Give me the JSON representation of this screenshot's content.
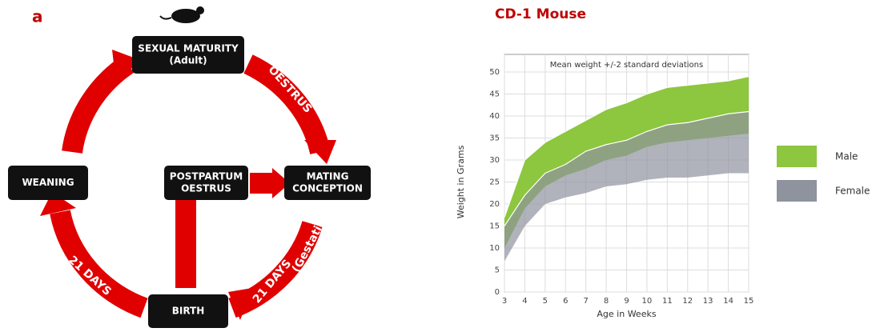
{
  "diagram": {
    "label": "a",
    "nodes": [
      {
        "lines": [
          "SEXUAL MATURITY",
          "(Adult)"
        ]
      },
      {
        "lines": [
          "WEANING"
        ]
      },
      {
        "lines": [
          "POSTPARTUM",
          "OESTRUS"
        ]
      },
      {
        "lines": [
          "MATING",
          "CONCEPTION"
        ]
      },
      {
        "lines": [
          "BIRTH"
        ]
      }
    ],
    "edge_labels": [
      "OESTRUS",
      "21 DAYS",
      "21 DAYS",
      "(Gestation)"
    ]
  },
  "chart_data": {
    "type": "band",
    "title": "CD-1 Mouse",
    "subtitle": "Mean weight +/-2 standard deviations",
    "xlabel": "Age in Weeks",
    "ylabel": "Weight in Grams",
    "x": [
      3,
      4,
      5,
      6,
      7,
      8,
      9,
      10,
      11,
      12,
      13,
      14,
      15
    ],
    "series": [
      {
        "name": "Male",
        "color": "#8dc63f",
        "upper": [
          17,
          30,
          34,
          36.5,
          39,
          41.5,
          43,
          45,
          46.5,
          47,
          47.5,
          48,
          49
        ],
        "lower": [
          10,
          19,
          24,
          26.5,
          28,
          30,
          31,
          33,
          34,
          34.5,
          35,
          35.5,
          36
        ]
      },
      {
        "name": "Female",
        "color": "#8e939e",
        "upper": [
          15,
          22,
          27,
          29,
          32,
          33.5,
          34.5,
          36.5,
          38,
          38.5,
          39.5,
          40.5,
          41
        ],
        "lower": [
          7,
          15,
          20,
          21.5,
          22.5,
          24,
          24.5,
          25.5,
          26,
          26,
          26.5,
          27,
          27
        ]
      }
    ],
    "xlim": [
      3,
      15
    ],
    "ylim": [
      0,
      50
    ],
    "xticks": [
      3,
      4,
      5,
      6,
      7,
      8,
      9,
      10,
      11,
      12,
      13,
      14,
      15
    ],
    "yticks": [
      0,
      5,
      10,
      15,
      20,
      25,
      30,
      35,
      40,
      45,
      50
    ],
    "grid": true,
    "legend": "right"
  }
}
